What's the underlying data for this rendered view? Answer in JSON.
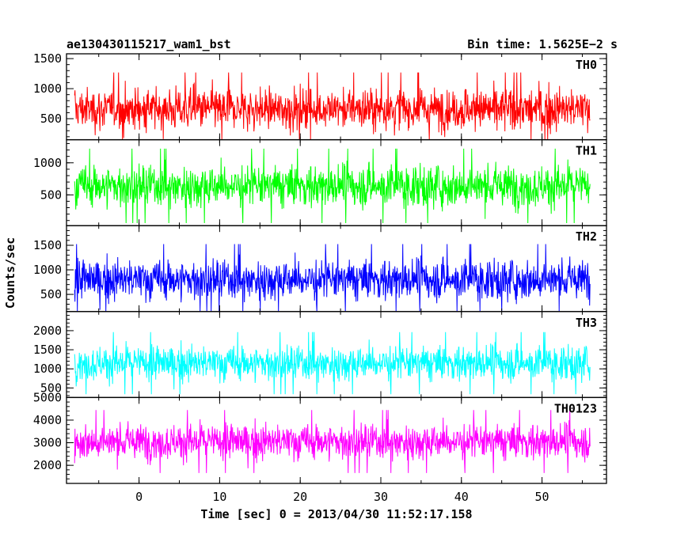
{
  "header": {
    "title": "ae130430115217_wam1_bst",
    "bin_time": "Bin time: 1.5625E−2 s"
  },
  "chart_data": {
    "type": "line",
    "xlabel": "Time [sec] 0 = 2013/04/30 11:52:17.158",
    "ylabel": "Counts/sec",
    "xlim": [
      -9,
      58
    ],
    "x_ticks": [
      0,
      10,
      20,
      30,
      40,
      50
    ],
    "x_tick_labels": [
      "0",
      "10",
      "20",
      "30",
      "40",
      "50"
    ],
    "data_x_range": [
      -8,
      56
    ],
    "bin_time_s": 0.015625,
    "panels": [
      {
        "name": "TH0",
        "color": "#ff0000",
        "ylim": [
          150,
          1580
        ],
        "yticks": [
          500,
          1000,
          1500
        ],
        "baseline": 660,
        "spread": 210,
        "min": 150,
        "max": 1580
      },
      {
        "name": "TH1",
        "color": "#00ff00",
        "ylim": [
          20,
          1360
        ],
        "yticks": [
          500,
          1000
        ],
        "baseline": 640,
        "spread": 200,
        "min": 20,
        "max": 1360
      },
      {
        "name": "TH2",
        "color": "#0000ff",
        "ylim": [
          150,
          1900
        ],
        "yticks": [
          500,
          1000,
          1500
        ],
        "baseline": 800,
        "spread": 250,
        "min": 150,
        "max": 1900
      },
      {
        "name": "TH3",
        "color": "#00ffff",
        "ylim": [
          250,
          2500
        ],
        "yticks": [
          500,
          1000,
          1500,
          2000
        ],
        "baseline": 1150,
        "spread": 280,
        "min": 250,
        "max": 2500
      },
      {
        "name": "TH0123",
        "color": "#ff00ff",
        "ylim": [
          1200,
          5000
        ],
        "yticks": [
          2000,
          3000,
          4000,
          5000
        ],
        "baseline": 3050,
        "spread": 480,
        "min": 1200,
        "max": 5000
      }
    ]
  }
}
